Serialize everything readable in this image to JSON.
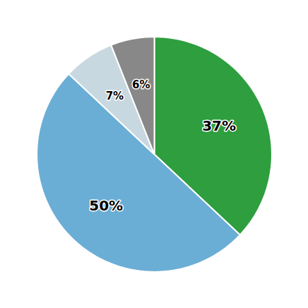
{
  "chart_data": {
    "type": "pie",
    "values": [
      37,
      50,
      7,
      6
    ],
    "value_labels": [
      "37%",
      "50%",
      "7%",
      "6%"
    ],
    "data_labels": true,
    "colors": [
      "#2e9e3e",
      "#6aaed6",
      "#c8d8e0",
      "#888888"
    ]
  }
}
